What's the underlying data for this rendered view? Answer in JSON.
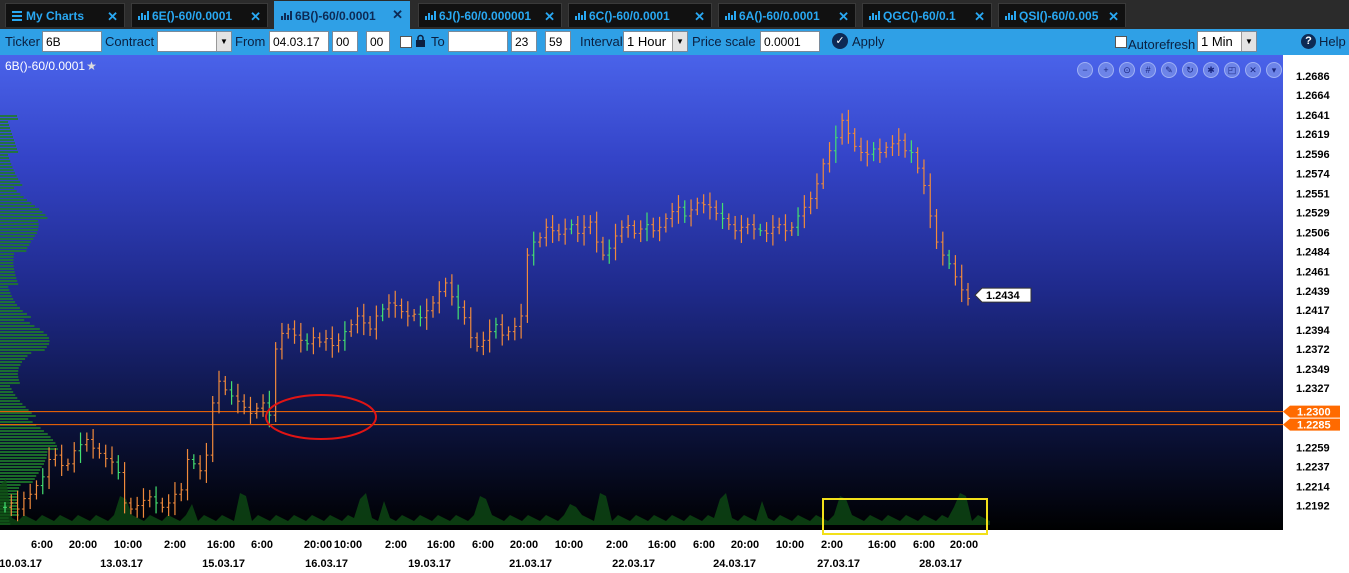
{
  "tabs": [
    {
      "label": "My Charts",
      "icon": "menu-icon",
      "active": false
    },
    {
      "label": "6E()-60/0.0001",
      "icon": "bar-chart-icon",
      "active": false
    },
    {
      "label": "6B()-60/0.0001",
      "icon": "bar-chart-icon",
      "active": true
    },
    {
      "label": "6J()-60/0.000001",
      "icon": "bar-chart-icon",
      "active": false
    },
    {
      "label": "6C()-60/0.0001",
      "icon": "bar-chart-icon",
      "active": false
    },
    {
      "label": "6A()-60/0.0001",
      "icon": "bar-chart-icon",
      "active": false
    },
    {
      "label": "QGC()-60/0.1",
      "icon": "bar-chart-icon",
      "active": false
    },
    {
      "label": "QSI()-60/0.005",
      "icon": "bar-chart-icon",
      "active": false
    }
  ],
  "toolbar": {
    "ticker_label": "Ticker",
    "ticker_value": "6B",
    "contract_label": "Contract",
    "contract_value": "",
    "from_label": "From",
    "from_date": "04.03.17",
    "from_hour": "00",
    "from_min": "00",
    "to_label": "To",
    "to_date": "",
    "to_hour": "23",
    "to_min": "59",
    "interval_label": "Interval",
    "interval_value": "1 Hour",
    "price_scale_label": "Price scale",
    "price_scale_value": "0.0001",
    "apply_label": "Apply",
    "autorefresh_label": "Autorefresh",
    "autorefresh_value": "1 Min",
    "help_label": "Help"
  },
  "chart_title": "6B()-60/0.0001",
  "chart_controls": [
    "zoom-out-icon",
    "zoom-in-icon",
    "zoom-reset-icon",
    "grid-icon",
    "pencil-icon",
    "refresh-icon",
    "settings-icon",
    "window-icon",
    "close-icon",
    "dropdown-icon"
  ],
  "colors": {
    "bar_up": "#44e070",
    "bar_down": "#f08a3c",
    "level_line": "#ff6a00",
    "circle": "#e01414",
    "highlight_box": "#f2e01a"
  },
  "chart_data": {
    "type": "ohlc",
    "price_ticks": [
      "1.2686",
      "1.2664",
      "1.2641",
      "1.2619",
      "1.2596",
      "1.2574",
      "1.2551",
      "1.2529",
      "1.2506",
      "1.2484",
      "1.2461",
      "1.2439",
      "1.2417",
      "1.2394",
      "1.2372",
      "1.2349",
      "1.2327",
      "1.2300",
      "1.2285",
      "1.2259",
      "1.2237",
      "1.2214",
      "1.2192"
    ],
    "ylim": [
      1.2175,
      1.27
    ],
    "time_ticks": [
      "6:00",
      "20:00",
      "10:00",
      "2:00",
      "16:00",
      "6:00",
      "20:00",
      "10:00",
      "2:00",
      "16:00",
      "6:00",
      "20:00",
      "10:00",
      "2:00",
      "16:00",
      "6:00",
      "20:00",
      "10:00",
      "2:00",
      "16:00",
      "6:00",
      "20:00"
    ],
    "date_ticks": [
      "10.03.17",
      "13.03.17",
      "15.03.17",
      "16.03.17",
      "19.03.17",
      "21.03.17",
      "22.03.17",
      "24.03.17",
      "27.03.17",
      "28.03.17"
    ],
    "last_price": "1.2434",
    "levels": [
      "1.2300",
      "1.2285"
    ],
    "path": [
      1.219,
      1.2195,
      1.2188,
      1.22,
      1.2205,
      1.2215,
      1.2225,
      1.2245,
      1.225,
      1.2238,
      1.224,
      1.2255,
      1.2262,
      1.2268,
      1.2258,
      1.2252,
      1.2246,
      1.2242,
      1.223,
      1.2195,
      1.2188,
      1.2192,
      1.2198,
      1.2202,
      1.2195,
      1.219,
      1.2195,
      1.2205,
      1.221,
      1.2245,
      1.224,
      1.2232,
      1.225,
      1.231,
      1.2335,
      1.2325,
      1.2318,
      1.2312,
      1.2305,
      1.2298,
      1.2304,
      1.231,
      1.2296,
      1.2372,
      1.239,
      1.2395,
      1.2388,
      1.2382,
      1.2378,
      1.2385,
      1.238,
      1.2384,
      1.2376,
      1.2382,
      1.2392,
      1.24,
      1.241,
      1.2402,
      1.2395,
      1.241,
      1.2418,
      1.2425,
      1.2422,
      1.2415,
      1.241,
      1.2412,
      1.2408,
      1.2416,
      1.2425,
      1.2438,
      1.2448,
      1.2432,
      1.242,
      1.2408,
      1.2385,
      1.2375,
      1.2382,
      1.2392,
      1.24,
      1.2388,
      1.2392,
      1.2398,
      1.241,
      1.248,
      1.2495,
      1.25,
      1.2512,
      1.2508,
      1.2504,
      1.251,
      1.2515,
      1.2505,
      1.2512,
      1.2518,
      1.2495,
      1.248,
      1.2488,
      1.2502,
      1.2512,
      1.2514,
      1.2505,
      1.251,
      1.2515,
      1.2508,
      1.2512,
      1.2522,
      1.253,
      1.2535,
      1.2525,
      1.2532,
      1.254,
      1.2538,
      1.2535,
      1.2528,
      1.2522,
      1.2515,
      1.2508,
      1.2512,
      1.2515,
      1.251,
      1.2508,
      1.2505,
      1.2512,
      1.2515,
      1.2508,
      1.2512,
      1.2525,
      1.2535,
      1.2545,
      1.2562,
      1.2585,
      1.26,
      1.2615,
      1.2635,
      1.262,
      1.2605,
      1.2598,
      1.2596,
      1.2602,
      1.2598,
      1.2604,
      1.2608,
      1.2612,
      1.26,
      1.2598,
      1.258,
      1.256,
      1.2525,
      1.2495,
      1.248,
      1.247,
      1.2455,
      1.244,
      1.243
    ]
  }
}
